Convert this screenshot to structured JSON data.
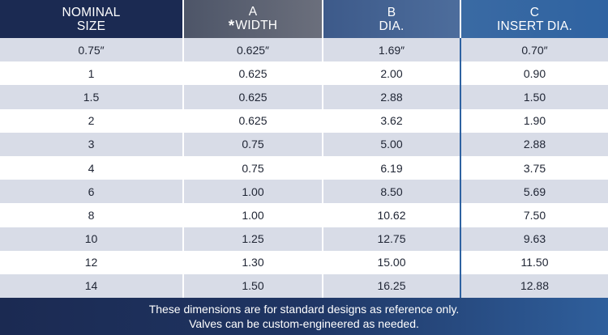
{
  "header": {
    "col1": {
      "line1": "NOMINAL",
      "line2": "SIZE"
    },
    "col2": {
      "line1": "A",
      "star": "*",
      "line2": "WIDTH"
    },
    "col3": {
      "line1": "B",
      "line2": "DIA."
    },
    "col4": {
      "line1": "C",
      "line2": "INSERT DIA."
    }
  },
  "rows": [
    [
      "0.75″",
      "0.625″",
      "1.69″",
      "0.70″"
    ],
    [
      "1",
      "0.625",
      "2.00",
      "0.90"
    ],
    [
      "1.5",
      "0.625",
      "2.88",
      "1.50"
    ],
    [
      "2",
      "0.625",
      "3.62",
      "1.90"
    ],
    [
      "3",
      "0.75",
      "5.00",
      "2.88"
    ],
    [
      "4",
      "0.75",
      "6.19",
      "3.75"
    ],
    [
      "6",
      "1.00",
      "8.50",
      "5.69"
    ],
    [
      "8",
      "1.00",
      "10.62",
      "7.50"
    ],
    [
      "10",
      "1.25",
      "12.75",
      "9.63"
    ],
    [
      "12",
      "1.30",
      "15.00",
      "11.50"
    ],
    [
      "14",
      "1.50",
      "16.25",
      "12.88"
    ]
  ],
  "footer": {
    "line1": "These dimensions are for standard designs as reference only.",
    "line2": "Valves can be custom-engineered as needed."
  },
  "colors": {
    "header_dark": "#1b2a52",
    "header_gray": "#5d6272",
    "header_blue": "#3a6aa3",
    "row_shade": "#d8dce7",
    "text": "#1e2433"
  }
}
